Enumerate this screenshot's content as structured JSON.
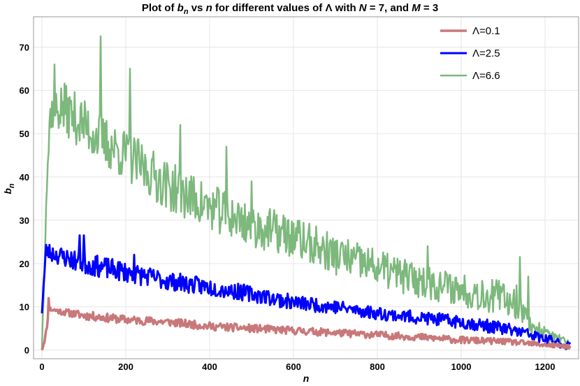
{
  "chart_data": {
    "type": "line",
    "title": {
      "pre": "Plot of ",
      "b": "b",
      "sub": "n",
      "mid1": "  vs ",
      "n": "n",
      "mid2": " for different values of Λ with ",
      "N": "N",
      "mid3": " = 7,  and ",
      "M": "M",
      "end": " = 3"
    },
    "xlabel": "n",
    "ylabel": {
      "b": "b",
      "sub": "n"
    },
    "xlim": [
      -20,
      1280
    ],
    "ylim": [
      -2,
      77
    ],
    "x_ticks": [
      0,
      200,
      400,
      600,
      800,
      1000,
      1200
    ],
    "y_ticks": [
      0,
      10,
      20,
      30,
      40,
      50,
      60,
      70
    ],
    "grid": true,
    "legend_position": "top-right",
    "n_max": 1260,
    "series": [
      {
        "name": "Λ=0.1",
        "color": "#c9787a",
        "stroke_width": 3.5,
        "envelope": [
          [
            0,
            0
          ],
          [
            8,
            3
          ],
          [
            18,
            9.5
          ],
          [
            40,
            9
          ],
          [
            100,
            8
          ],
          [
            200,
            7
          ],
          [
            300,
            6.5
          ],
          [
            400,
            5.5
          ],
          [
            500,
            5
          ],
          [
            600,
            4.5
          ],
          [
            700,
            4
          ],
          [
            800,
            3.5
          ],
          [
            900,
            3
          ],
          [
            1000,
            2.3
          ],
          [
            1100,
            2
          ],
          [
            1200,
            1.2
          ],
          [
            1260,
            0.8
          ]
        ],
        "amplitude": [
          [
            0,
            0.5
          ],
          [
            100,
            1
          ],
          [
            500,
            0.9
          ],
          [
            1000,
            0.8
          ],
          [
            1260,
            0.5
          ]
        ],
        "spikes": [
          [
            16,
            12
          ]
        ]
      },
      {
        "name": "Λ=2.5",
        "color": "#0000ff",
        "stroke_width": 3,
        "envelope": [
          [
            0,
            9.5
          ],
          [
            10,
            23
          ],
          [
            20,
            22.5
          ],
          [
            100,
            20
          ],
          [
            200,
            18
          ],
          [
            300,
            16
          ],
          [
            400,
            14.5
          ],
          [
            500,
            13
          ],
          [
            600,
            11
          ],
          [
            700,
            10
          ],
          [
            800,
            8.5
          ],
          [
            900,
            7.5
          ],
          [
            1000,
            6.5
          ],
          [
            1100,
            5
          ],
          [
            1150,
            4
          ],
          [
            1200,
            2.5
          ],
          [
            1260,
            1
          ]
        ],
        "amplitude": [
          [
            0,
            2
          ],
          [
            100,
            2.5
          ],
          [
            400,
            2
          ],
          [
            800,
            1.5
          ],
          [
            1100,
            1.5
          ],
          [
            1260,
            1
          ]
        ],
        "spikes": [
          [
            15,
            27
          ],
          [
            90,
            26.5
          ],
          [
            100,
            26.5
          ],
          [
            220,
            22
          ]
        ]
      },
      {
        "name": "Λ=6.6",
        "color": "#7db87d",
        "stroke_width": 2.5,
        "envelope": [
          [
            0,
            0
          ],
          [
            10,
            35
          ],
          [
            20,
            55
          ],
          [
            50,
            56
          ],
          [
            100,
            52
          ],
          [
            150,
            48
          ],
          [
            200,
            45
          ],
          [
            300,
            38
          ],
          [
            400,
            33
          ],
          [
            500,
            29
          ],
          [
            600,
            26
          ],
          [
            700,
            22
          ],
          [
            800,
            19
          ],
          [
            900,
            16
          ],
          [
            1000,
            14
          ],
          [
            1100,
            12
          ],
          [
            1140,
            11
          ],
          [
            1160,
            6
          ],
          [
            1200,
            4
          ],
          [
            1260,
            1
          ]
        ],
        "amplitude": [
          [
            0,
            3
          ],
          [
            50,
            6
          ],
          [
            200,
            6
          ],
          [
            600,
            5
          ],
          [
            900,
            4
          ],
          [
            1140,
            4
          ],
          [
            1160,
            2
          ],
          [
            1260,
            1
          ]
        ],
        "spikes": [
          [
            30,
            66
          ],
          [
            140,
            72.5
          ],
          [
            210,
            65
          ],
          [
            330,
            52
          ],
          [
            440,
            47
          ],
          [
            500,
            39
          ],
          [
            920,
            24
          ],
          [
            1140,
            21.5
          ],
          [
            1160,
            17
          ]
        ]
      }
    ]
  }
}
